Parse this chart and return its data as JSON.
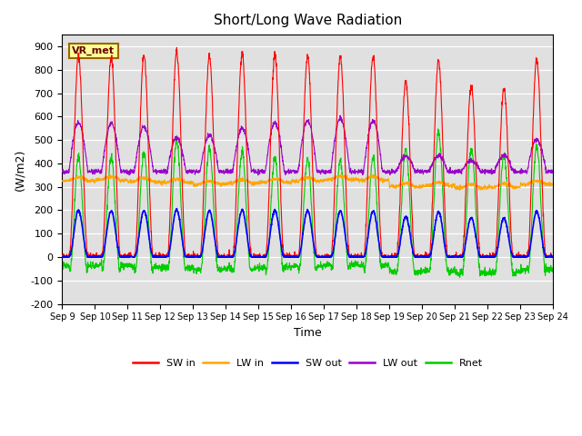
{
  "title": "Short/Long Wave Radiation",
  "xlabel": "Time",
  "ylabel": "(W/m2)",
  "ylim": [
    -200,
    950
  ],
  "yticks": [
    -200,
    -100,
    0,
    100,
    200,
    300,
    400,
    500,
    600,
    700,
    800,
    900
  ],
  "xtick_labels": [
    "Sep 9",
    "Sep 10",
    "Sep 11",
    "Sep 12",
    "Sep 13",
    "Sep 14",
    "Sep 15",
    "Sep 16",
    "Sep 17",
    "Sep 18",
    "Sep 19",
    "Sep 20",
    "Sep 21",
    "Sep 22",
    "Sep 23",
    "Sep 24"
  ],
  "colors": {
    "SW_in": "#ff0000",
    "LW_in": "#ffa500",
    "SW_out": "#0000ff",
    "LW_out": "#9900cc",
    "Rnet": "#00cc00"
  },
  "legend_labels": [
    "SW in",
    "LW in",
    "SW out",
    "LW out",
    "Rnet"
  ],
  "bg_color": "#e0e0e0",
  "annotation_text": "VR_met",
  "annotation_bg": "#ffff99",
  "annotation_border": "#996600",
  "n_days": 15,
  "pts_per_day": 144
}
